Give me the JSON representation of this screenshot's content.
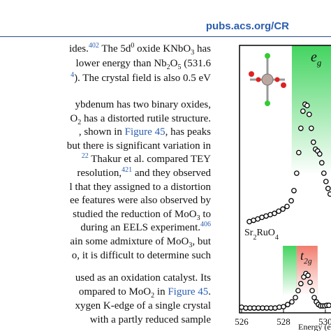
{
  "header": {
    "journal_url": "pubs.acs.org/CR"
  },
  "body": {
    "paragraphs": [
      [
        [
          {
            "text": "ides."
          },
          {
            "text": "402",
            "style": "link-sup"
          },
          {
            "text": " The 5d"
          },
          {
            "text": "0",
            "style": "sup"
          },
          {
            "text": " oxide KNbO"
          },
          {
            "text": "3",
            "style": "sub"
          },
          {
            "text": " has"
          }
        ],
        [
          {
            "text": "lower energy than Nb"
          },
          {
            "text": "2",
            "style": "sub"
          },
          {
            "text": "O"
          },
          {
            "text": "5",
            "style": "sub"
          },
          {
            "text": " (531.6"
          }
        ],
        [
          {
            "text": "4",
            "style": "link-sup"
          },
          {
            "text": "). The crystal field is also 0.5 eV"
          }
        ]
      ],
      [
        [
          {
            "text": "ybdenum has two binary oxides,"
          }
        ],
        [
          {
            "text": "O"
          },
          {
            "text": "2",
            "style": "sub"
          },
          {
            "text": " has a distorted rutile structure."
          }
        ],
        [
          {
            "text": ", shown in "
          },
          {
            "text": "Figure 45",
            "style": "link"
          },
          {
            "text": ", has peaks"
          }
        ],
        [
          {
            "text": "but there is significant variation in"
          }
        ],
        [
          {
            "text": "22",
            "style": "link-sup"
          },
          {
            "text": " Thakur et al. compared TEY"
          }
        ],
        [
          {
            "text": "resolution,"
          },
          {
            "text": "421",
            "style": "link-sup"
          },
          {
            "text": " and they observed"
          }
        ],
        [
          {
            "text": "l that they assigned to a distortion"
          }
        ],
        [
          {
            "text": "ee features were also observed by"
          }
        ],
        [
          {
            "text": "studied the reduction of MoO"
          },
          {
            "text": "3",
            "style": "sub"
          },
          {
            "text": " to"
          }
        ],
        [
          {
            "text": " during an EELS experiment."
          },
          {
            "text": "406",
            "style": "link-sup"
          }
        ],
        [
          {
            "text": "ain some admixture of MoO"
          },
          {
            "text": "3",
            "style": "sub"
          },
          {
            "text": ", but"
          }
        ],
        [
          {
            "text": "o, it is difficult to determine such"
          }
        ]
      ],
      [
        [
          {
            "text": "used as an oxidation catalyst. Its"
          }
        ],
        [
          {
            "text": "ompared to MoO"
          },
          {
            "text": "2",
            "style": "sub"
          },
          {
            "text": " in "
          },
          {
            "text": "Figure 45",
            "style": "link"
          },
          {
            "text": "."
          }
        ],
        [
          {
            "text": "xygen K-edge of a single crystal"
          }
        ],
        [
          {
            "text": "with a partly reduced sample"
          }
        ]
      ]
    ]
  },
  "chart_data": {
    "type": "scatter",
    "x_label": "Energy (e",
    "xlim": [
      525.9,
      530.27
    ],
    "xticks": [
      526,
      528,
      530
    ],
    "ylim": [
      0,
      10
    ],
    "bands": [
      {
        "label": "e",
        "subscript": "g",
        "ranges": [
          {
            "x": [
              528.4,
              530.27
            ],
            "color": "#22cc44"
          }
        ]
      },
      {
        "label": "t",
        "subscript": "2g",
        "ranges": [
          {
            "x": [
              527.97,
              528.63
            ],
            "color": "#22cc44"
          },
          {
            "x": [
              528.63,
              529.63
            ],
            "color": "#ee6655"
          }
        ]
      }
    ],
    "series": [
      {
        "name": "Sr2RuO4",
        "x": [
          526.37,
          526.57,
          526.77,
          526.97,
          527.17,
          527.37,
          527.57,
          527.77,
          527.97,
          528.17,
          528.37,
          528.5,
          528.63,
          528.73,
          528.83,
          528.93,
          529.03,
          529.13,
          529.23,
          529.33,
          529.43,
          529.53,
          529.63,
          529.73,
          529.83,
          529.93,
          530.03,
          530.13,
          530.23
        ],
        "values": [
          3.41,
          3.46,
          3.51,
          3.57,
          3.62,
          3.67,
          3.72,
          3.8,
          3.88,
          3.98,
          4.19,
          4.57,
          5.22,
          5.99,
          6.9,
          7.54,
          7.8,
          7.75,
          7.42,
          6.9,
          6.38,
          6.12,
          6.05,
          5.94,
          5.61,
          5.22,
          4.91,
          4.65,
          4.44
        ]
      },
      {
        "x": [
          526.0,
          526.2,
          526.4,
          526.6,
          526.8,
          527.0,
          527.2,
          527.4,
          527.6,
          527.8,
          528.0,
          528.2,
          528.4,
          528.57,
          528.7,
          528.83,
          528.97,
          529.07,
          529.17,
          529.27,
          529.37,
          529.47,
          529.57,
          529.67,
          529.77,
          529.87,
          529.97,
          530.07,
          530.17
        ],
        "values": [
          0.21,
          0.18,
          0.18,
          0.18,
          0.18,
          0.18,
          0.18,
          0.18,
          0.18,
          0.21,
          0.23,
          0.31,
          0.41,
          0.57,
          0.83,
          1.09,
          1.34,
          1.47,
          1.4,
          1.14,
          0.83,
          0.57,
          0.41,
          0.31,
          0.26,
          0.26,
          0.26,
          0.28,
          0.28
        ]
      }
    ]
  }
}
